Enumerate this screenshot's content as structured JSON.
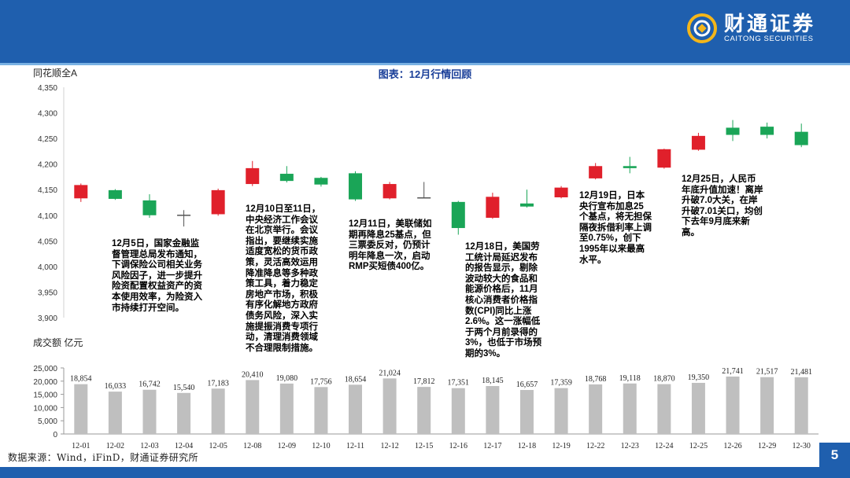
{
  "header": {
    "brand_cn": "财通证券",
    "brand_en": "CAITONG SECURITIES",
    "brand_color": "#1f5fae"
  },
  "title": "图表：12月行情回顾",
  "y1_title": "同花顺全A",
  "y2_title": "成交额 亿元",
  "source": "数据来源：Wind，iFinD，财通证券研究所",
  "page_number": "5",
  "colors": {
    "up": "#e0202b",
    "down": "#1aa557",
    "volume": "#bfbfbf",
    "accent": "#1a3f99"
  },
  "notes": [
    "12月5日，国家金融监督管理总局发布通知，下调保险公司相关业务风险因子，进一步提升险资配置权益资产的资本使用效率，为险资入市持续打开空间。",
    "12月10日至11日，中央经济工作会议在北京举行。会议指出，要继续实施适度宽松的货币政策，灵活高效运用降准降息等多种政策工具，着力稳定房地产市场，积极有序化解地方政府债务风险，深入实施提振消费专项行动，清理消费领域不合理限制措施。",
    "12月11日，美联储如期再降息25基点，但三票委反对，仍预计明年降息一次，启动RMP买短债400亿。",
    "12月18日，美国劳工统计局延迟发布的报告显示，剔除波动较大的食品和能源价格后，11月核心消费者价格指数(CPI)同比上涨2.6%。这一涨幅低于两个月前录得的3%，也低于市场预期的3%。",
    "12月19日，日本央行宣布加息25个基点，将无担保隔夜拆借利率上调至0.75%，创下1995年以来最高水平。",
    "12月25日，人民币年底升值加速！离岸升破7.0大关，在岸升破7.01关口，均创下去年9月底来新高。"
  ],
  "chart_data": [
    {
      "type": "candlestick",
      "title": "图表：12月行情回顾",
      "ylabel": "同花顺全A",
      "ylim": [
        3900,
        4350
      ],
      "yticks": [
        3900,
        3950,
        4000,
        4050,
        4100,
        4150,
        4200,
        4250,
        4300,
        4350
      ],
      "ytick_labels": [
        "3,900",
        "3,950",
        "4,000",
        "4,050",
        "4,100",
        "4,150",
        "4,200",
        "4,250",
        "4,300",
        "4,350"
      ],
      "categories": [
        "12-01",
        "12-02",
        "12-03",
        "12-04",
        "12-05",
        "12-08",
        "12-09",
        "12-10",
        "12-11",
        "12-12",
        "12-15",
        "12-16",
        "12-17",
        "12-18",
        "12-19",
        "12-22",
        "12-23",
        "12-24",
        "12-25",
        "12-26",
        "12-29",
        "12-30"
      ],
      "open": [
        4133,
        4149,
        4129,
        4101,
        4102,
        4161,
        4181,
        4173,
        4182,
        4133,
        4135,
        4126,
        4095,
        4123,
        4135,
        4172,
        4196,
        4193,
        4228,
        4271,
        4273,
        4263
      ],
      "close": [
        4159,
        4132,
        4100,
        4101,
        4149,
        4192,
        4167,
        4160,
        4131,
        4161,
        4135,
        4075,
        4136,
        4117,
        4154,
        4196,
        4192,
        4229,
        4255,
        4257,
        4257,
        4237
      ],
      "high": [
        4162,
        4151,
        4141,
        4110,
        4152,
        4206,
        4196,
        4175,
        4186,
        4165,
        4165,
        4128,
        4144,
        4150,
        4157,
        4202,
        4214,
        4230,
        4261,
        4286,
        4281,
        4279
      ],
      "low": [
        4126,
        4130,
        4095,
        4078,
        4099,
        4157,
        4164,
        4156,
        4128,
        4131,
        4133,
        4062,
        4093,
        4115,
        4133,
        4170,
        4182,
        4191,
        4226,
        4245,
        4250,
        4233
      ],
      "grid": false
    },
    {
      "type": "bar",
      "ylabel": "成交额 亿元",
      "ylim": [
        0,
        25000
      ],
      "yticks": [
        0,
        5000,
        10000,
        15000,
        20000,
        25000
      ],
      "ytick_labels": [
        "0",
        "5,000",
        "10,000",
        "15,000",
        "20,000",
        "25,000"
      ],
      "categories": [
        "12-01",
        "12-02",
        "12-03",
        "12-04",
        "12-05",
        "12-08",
        "12-09",
        "12-10",
        "12-11",
        "12-12",
        "12-15",
        "12-16",
        "12-17",
        "12-18",
        "12-19",
        "12-22",
        "12-23",
        "12-24",
        "12-25",
        "12-26",
        "12-29",
        "12-30"
      ],
      "values": [
        18854,
        16033,
        16742,
        15540,
        17183,
        20410,
        19080,
        17756,
        18654,
        21024,
        17812,
        17351,
        18145,
        16657,
        17359,
        18768,
        19118,
        18870,
        19350,
        21741,
        21517,
        21481
      ],
      "value_labels": [
        "18,854",
        "16,033",
        "16,742",
        "15,540",
        "17,183",
        "20,410",
        "19,080",
        "17,756",
        "18,654",
        "21,024",
        "17,812",
        "17,351",
        "18,145",
        "16,657",
        "17,359",
        "18,768",
        "19,118",
        "18,870",
        "19,350",
        "21,741",
        "21,517",
        "21,481"
      ],
      "grid": false
    }
  ]
}
